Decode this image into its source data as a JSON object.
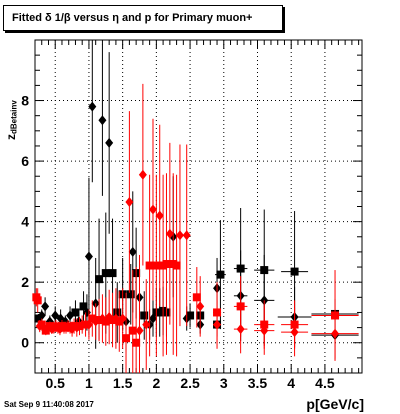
{
  "title": "Fitted δ 1/β versus η and p for Primary muon+",
  "ylabel_main": "z",
  "ylabel_sub": "dBetainv",
  "xlabel": "p[GeV/c]",
  "timestamp": "Sat Sep  9 11:40:08 2017",
  "colors": {
    "black_series": "#000000",
    "red_series": "#ff0000",
    "grid": "#000000"
  },
  "chart_data": {
    "type": "scatter",
    "title": "Fitted δ 1/β versus η and p for Primary muon+",
    "xlabel": "p[GeV/c]",
    "ylabel": "z dBetainv",
    "xlim": [
      0.2,
      5.05
    ],
    "ylim": [
      -1.0,
      10.0
    ],
    "x_ticks": [
      0.5,
      1,
      1.5,
      2,
      2.5,
      3,
      3.5,
      4,
      4.5
    ],
    "x_tick_labels": [
      "0.5",
      "1",
      "1.5",
      "2",
      "2.5",
      "3",
      "3.5",
      "4",
      "4.5"
    ],
    "y_ticks": [
      0,
      2,
      4,
      6,
      8
    ],
    "y_tick_labels": [
      "0",
      "2",
      "4",
      "6",
      "8"
    ],
    "grid": true,
    "series": [
      {
        "color": "black",
        "points": [
          {
            "x": 0.25,
            "y": 0.8,
            "xerr": 0.03,
            "yerr": 0.15,
            "m": "s"
          },
          {
            "x": 0.3,
            "y": 0.9,
            "xerr": 0.03,
            "yerr": 0.2,
            "m": "d"
          },
          {
            "x": 0.35,
            "y": 1.2,
            "xerr": 0.03,
            "yerr": 0.3,
            "m": "d"
          },
          {
            "x": 0.42,
            "y": 0.7,
            "xerr": 0.03,
            "yerr": 0.2,
            "m": "d"
          },
          {
            "x": 0.5,
            "y": 0.9,
            "xerr": 0.03,
            "yerr": 0.3,
            "m": "d"
          },
          {
            "x": 0.58,
            "y": 0.8,
            "xerr": 0.03,
            "yerr": 0.3,
            "m": "d"
          },
          {
            "x": 0.65,
            "y": 0.7,
            "xerr": 0.03,
            "yerr": 0.2,
            "m": "d"
          },
          {
            "x": 0.72,
            "y": 0.9,
            "xerr": 0.03,
            "yerr": 0.3,
            "m": "d"
          },
          {
            "x": 0.8,
            "y": 1.0,
            "xerr": 0.03,
            "yerr": 0.4,
            "m": "s"
          },
          {
            "x": 0.85,
            "y": 0.7,
            "xerr": 0.03,
            "yerr": 0.3,
            "m": "d"
          },
          {
            "x": 0.92,
            "y": 1.2,
            "xerr": 0.03,
            "yerr": 0.5,
            "m": "s"
          },
          {
            "x": 0.97,
            "y": 1.0,
            "xerr": 0.03,
            "yerr": 0.6,
            "m": "d"
          },
          {
            "x": 1.0,
            "y": 2.85,
            "xerr": 0.03,
            "yerr": 2.6,
            "m": "d"
          },
          {
            "x": 1.05,
            "y": 7.8,
            "xerr": 0.03,
            "yerr": 2.5,
            "m": "d"
          },
          {
            "x": 1.1,
            "y": 1.3,
            "xerr": 0.03,
            "yerr": 1.5,
            "m": "d"
          },
          {
            "x": 1.15,
            "y": 2.1,
            "xerr": 0.03,
            "yerr": 2.0,
            "m": "s"
          },
          {
            "x": 1.2,
            "y": 7.35,
            "xerr": 0.03,
            "yerr": 2.5,
            "m": "d"
          },
          {
            "x": 1.25,
            "y": 2.3,
            "xerr": 0.04,
            "yerr": 2.0,
            "m": "s"
          },
          {
            "x": 1.3,
            "y": 6.6,
            "xerr": 0.04,
            "yerr": 3.0,
            "m": "d"
          },
          {
            "x": 1.35,
            "y": 2.3,
            "xerr": 0.04,
            "yerr": 1.8,
            "m": "s"
          },
          {
            "x": 1.42,
            "y": 1.0,
            "xerr": 0.04,
            "yerr": 1.0,
            "m": "s"
          },
          {
            "x": 1.5,
            "y": 1.6,
            "xerr": 0.04,
            "yerr": 1.2,
            "m": "s"
          },
          {
            "x": 1.55,
            "y": 0.7,
            "xerr": 0.04,
            "yerr": 1.0,
            "m": "d"
          },
          {
            "x": 1.62,
            "y": 1.6,
            "xerr": 0.04,
            "yerr": 1.0,
            "m": "s"
          },
          {
            "x": 1.65,
            "y": 3.0,
            "xerr": 0.04,
            "yerr": 2.0,
            "m": "d"
          },
          {
            "x": 1.7,
            "y": 2.3,
            "xerr": 0.04,
            "yerr": 1.5,
            "m": "s"
          },
          {
            "x": 1.75,
            "y": 1.5,
            "xerr": 0.04,
            "yerr": 1.0,
            "m": "d"
          },
          {
            "x": 1.82,
            "y": 0.9,
            "xerr": 0.04,
            "yerr": 0.8,
            "m": "s"
          },
          {
            "x": 1.9,
            "y": 0.6,
            "xerr": 0.04,
            "yerr": 0.5,
            "m": "d"
          },
          {
            "x": 1.95,
            "y": 0.8,
            "xerr": 0.04,
            "yerr": 0.6,
            "m": "d"
          },
          {
            "x": 2.0,
            "y": 1.0,
            "xerr": 0.05,
            "yerr": 0.8,
            "m": "s"
          },
          {
            "x": 2.05,
            "y": 1.0,
            "xerr": 0.05,
            "yerr": 0.8,
            "m": "s"
          },
          {
            "x": 2.1,
            "y": 1.05,
            "xerr": 0.05,
            "yerr": 0.8,
            "m": "s"
          },
          {
            "x": 2.15,
            "y": 1.0,
            "xerr": 0.05,
            "yerr": 0.8,
            "m": "s"
          },
          {
            "x": 2.25,
            "y": 3.5,
            "xerr": 0.05,
            "yerr": 2.0,
            "m": "d"
          },
          {
            "x": 2.45,
            "y": 0.8,
            "xerr": 0.05,
            "yerr": 0.4,
            "m": "d"
          },
          {
            "x": 2.5,
            "y": 0.9,
            "xerr": 0.05,
            "yerr": 0.4,
            "m": "s"
          },
          {
            "x": 2.65,
            "y": 0.6,
            "xerr": 0.05,
            "yerr": 0.3,
            "m": "d"
          },
          {
            "x": 2.65,
            "y": 0.9,
            "xerr": 0.05,
            "yerr": 0.4,
            "m": "s"
          },
          {
            "x": 2.9,
            "y": 1.8,
            "xerr": 0.05,
            "yerr": 1.0,
            "m": "d"
          },
          {
            "x": 2.9,
            "y": 0.6,
            "xerr": 0.05,
            "yerr": 0.4,
            "m": "s"
          },
          {
            "x": 2.95,
            "y": 2.25,
            "xerr": 0.08,
            "yerr": 1.8,
            "m": "s"
          },
          {
            "x": 3.25,
            "y": 2.45,
            "xerr": 0.1,
            "yerr": 2.0,
            "m": "s"
          },
          {
            "x": 3.25,
            "y": 1.55,
            "xerr": 0.1,
            "yerr": 1.5,
            "m": "d"
          },
          {
            "x": 3.6,
            "y": 2.4,
            "xerr": 0.15,
            "yerr": 2.0,
            "m": "s"
          },
          {
            "x": 3.6,
            "y": 1.4,
            "xerr": 0.15,
            "yerr": 1.5,
            "m": "d"
          },
          {
            "x": 4.05,
            "y": 2.35,
            "xerr": 0.2,
            "yerr": 2.0,
            "m": "s"
          },
          {
            "x": 4.05,
            "y": 0.85,
            "xerr": 0.25,
            "yerr": 1.0,
            "m": "d"
          },
          {
            "x": 4.65,
            "y": 0.95,
            "xerr": 0.35,
            "yerr": 0.5,
            "m": "s"
          },
          {
            "x": 4.65,
            "y": 0.25,
            "xerr": 0.35,
            "yerr": 0.8,
            "m": "d"
          }
        ]
      },
      {
        "color": "red",
        "points": [
          {
            "x": 0.22,
            "y": 1.5,
            "xerr": 0.02,
            "yerr": 0.3,
            "m": "s"
          },
          {
            "x": 0.24,
            "y": 1.4,
            "xerr": 0.02,
            "yerr": 0.4,
            "m": "s"
          },
          {
            "x": 0.27,
            "y": 0.55,
            "xerr": 0.02,
            "yerr": 0.2,
            "m": "d"
          },
          {
            "x": 0.3,
            "y": 0.6,
            "xerr": 0.02,
            "yerr": 0.2,
            "m": "s"
          },
          {
            "x": 0.33,
            "y": 0.5,
            "xerr": 0.02,
            "yerr": 0.15,
            "m": "d"
          },
          {
            "x": 0.36,
            "y": 0.4,
            "xerr": 0.02,
            "yerr": 0.15,
            "m": "s"
          },
          {
            "x": 0.39,
            "y": 0.5,
            "xerr": 0.02,
            "yerr": 0.15,
            "m": "d"
          },
          {
            "x": 0.42,
            "y": 0.55,
            "xerr": 0.02,
            "yerr": 0.15,
            "m": "s"
          },
          {
            "x": 0.45,
            "y": 0.45,
            "xerr": 0.02,
            "yerr": 0.15,
            "m": "d"
          },
          {
            "x": 0.48,
            "y": 0.5,
            "xerr": 0.02,
            "yerr": 0.2,
            "m": "s"
          },
          {
            "x": 0.51,
            "y": 0.55,
            "xerr": 0.02,
            "yerr": 0.2,
            "m": "d"
          },
          {
            "x": 0.54,
            "y": 0.5,
            "xerr": 0.02,
            "yerr": 0.2,
            "m": "s"
          },
          {
            "x": 0.57,
            "y": 0.45,
            "xerr": 0.02,
            "yerr": 0.2,
            "m": "d"
          },
          {
            "x": 0.6,
            "y": 0.55,
            "xerr": 0.02,
            "yerr": 0.2,
            "m": "s"
          },
          {
            "x": 0.63,
            "y": 0.5,
            "xerr": 0.02,
            "yerr": 0.2,
            "m": "d"
          },
          {
            "x": 0.66,
            "y": 0.5,
            "xerr": 0.02,
            "yerr": 0.2,
            "m": "s"
          },
          {
            "x": 0.69,
            "y": 0.55,
            "xerr": 0.02,
            "yerr": 0.2,
            "m": "d"
          },
          {
            "x": 0.72,
            "y": 0.5,
            "xerr": 0.02,
            "yerr": 0.2,
            "m": "s"
          },
          {
            "x": 0.75,
            "y": 0.45,
            "xerr": 0.02,
            "yerr": 0.25,
            "m": "d"
          },
          {
            "x": 0.78,
            "y": 0.55,
            "xerr": 0.02,
            "yerr": 0.25,
            "m": "s"
          },
          {
            "x": 0.82,
            "y": 0.5,
            "xerr": 0.02,
            "yerr": 0.3,
            "m": "d"
          },
          {
            "x": 0.86,
            "y": 0.55,
            "xerr": 0.02,
            "yerr": 0.3,
            "m": "s"
          },
          {
            "x": 0.9,
            "y": 0.6,
            "xerr": 0.02,
            "yerr": 0.3,
            "m": "d"
          },
          {
            "x": 0.95,
            "y": 0.6,
            "xerr": 0.02,
            "yerr": 0.4,
            "m": "s"
          },
          {
            "x": 1.0,
            "y": 0.6,
            "xerr": 0.02,
            "yerr": 0.5,
            "m": "d"
          },
          {
            "x": 1.05,
            "y": 0.8,
            "xerr": 0.03,
            "yerr": 0.6,
            "m": "s"
          },
          {
            "x": 1.1,
            "y": 0.7,
            "xerr": 0.03,
            "yerr": 0.6,
            "m": "d"
          },
          {
            "x": 1.15,
            "y": 0.75,
            "xerr": 0.03,
            "yerr": 0.7,
            "m": "s"
          },
          {
            "x": 1.2,
            "y": 0.8,
            "xerr": 0.03,
            "yerr": 0.8,
            "m": "d"
          },
          {
            "x": 1.25,
            "y": 0.7,
            "xerr": 0.03,
            "yerr": 0.8,
            "m": "s"
          },
          {
            "x": 1.3,
            "y": 0.85,
            "xerr": 0.03,
            "yerr": 0.9,
            "m": "d"
          },
          {
            "x": 1.35,
            "y": 0.75,
            "xerr": 0.03,
            "yerr": 0.9,
            "m": "s"
          },
          {
            "x": 1.4,
            "y": 0.8,
            "xerr": 0.03,
            "yerr": 1.0,
            "m": "d"
          },
          {
            "x": 1.45,
            "y": 0.7,
            "xerr": 0.03,
            "yerr": 1.0,
            "m": "s"
          },
          {
            "x": 1.5,
            "y": 0.8,
            "xerr": 0.03,
            "yerr": 1.0,
            "m": "d"
          },
          {
            "x": 1.55,
            "y": 0.15,
            "xerr": 0.03,
            "yerr": 1.5,
            "m": "s"
          },
          {
            "x": 1.6,
            "y": 4.65,
            "xerr": 0.03,
            "yerr": 3.0,
            "m": "d"
          },
          {
            "x": 1.65,
            "y": 0.4,
            "xerr": 0.03,
            "yerr": 2.0,
            "m": "s"
          },
          {
            "x": 1.7,
            "y": 0.0,
            "xerr": 0.03,
            "yerr": 2.5,
            "m": "s"
          },
          {
            "x": 1.75,
            "y": 0.4,
            "xerr": 0.04,
            "yerr": 2.5,
            "m": "d"
          },
          {
            "x": 1.8,
            "y": 5.55,
            "xerr": 0.04,
            "yerr": 3.0,
            "m": "d"
          },
          {
            "x": 1.85,
            "y": 0.6,
            "xerr": 0.04,
            "yerr": 1.5,
            "m": "d"
          },
          {
            "x": 1.9,
            "y": 2.55,
            "xerr": 0.04,
            "yerr": 3.0,
            "m": "s"
          },
          {
            "x": 1.95,
            "y": 4.4,
            "xerr": 0.04,
            "yerr": 3.0,
            "m": "d"
          },
          {
            "x": 2.0,
            "y": 2.55,
            "xerr": 0.04,
            "yerr": 3.0,
            "m": "s"
          },
          {
            "x": 2.05,
            "y": 4.2,
            "xerr": 0.04,
            "yerr": 3.0,
            "m": "d"
          },
          {
            "x": 2.1,
            "y": 2.55,
            "xerr": 0.04,
            "yerr": 3.0,
            "m": "s"
          },
          {
            "x": 2.15,
            "y": 2.6,
            "xerr": 0.04,
            "yerr": 3.0,
            "m": "s"
          },
          {
            "x": 2.2,
            "y": 3.6,
            "xerr": 0.05,
            "yerr": 3.0,
            "m": "d"
          },
          {
            "x": 2.25,
            "y": 2.6,
            "xerr": 0.05,
            "yerr": 3.0,
            "m": "s"
          },
          {
            "x": 2.3,
            "y": 2.55,
            "xerr": 0.05,
            "yerr": 3.0,
            "m": "s"
          },
          {
            "x": 2.35,
            "y": 3.55,
            "xerr": 0.05,
            "yerr": 3.0,
            "m": "d"
          },
          {
            "x": 2.45,
            "y": 3.55,
            "xerr": 0.05,
            "yerr": 3.0,
            "m": "d"
          },
          {
            "x": 2.6,
            "y": 1.5,
            "xerr": 0.05,
            "yerr": 1.0,
            "m": "s"
          },
          {
            "x": 2.65,
            "y": 1.2,
            "xerr": 0.05,
            "yerr": 1.0,
            "m": "d"
          },
          {
            "x": 2.9,
            "y": 1.0,
            "xerr": 0.06,
            "yerr": 1.0,
            "m": "s"
          },
          {
            "x": 2.9,
            "y": 0.6,
            "xerr": 0.06,
            "yerr": 0.8,
            "m": "d"
          },
          {
            "x": 3.25,
            "y": 1.2,
            "xerr": 0.1,
            "yerr": 1.0,
            "m": "s"
          },
          {
            "x": 3.25,
            "y": 0.45,
            "xerr": 0.1,
            "yerr": 0.8,
            "m": "d"
          },
          {
            "x": 3.6,
            "y": 0.6,
            "xerr": 0.15,
            "yerr": 0.8,
            "m": "s"
          },
          {
            "x": 3.6,
            "y": 0.4,
            "xerr": 0.15,
            "yerr": 0.8,
            "m": "d"
          },
          {
            "x": 4.05,
            "y": 0.6,
            "xerr": 0.2,
            "yerr": 0.8,
            "m": "s"
          },
          {
            "x": 4.05,
            "y": 0.35,
            "xerr": 0.2,
            "yerr": 0.8,
            "m": "d"
          },
          {
            "x": 4.65,
            "y": 0.9,
            "xerr": 0.35,
            "yerr": 1.5,
            "m": "s"
          },
          {
            "x": 4.65,
            "y": 0.3,
            "xerr": 0.35,
            "yerr": 0.8,
            "m": "d"
          }
        ]
      }
    ]
  }
}
